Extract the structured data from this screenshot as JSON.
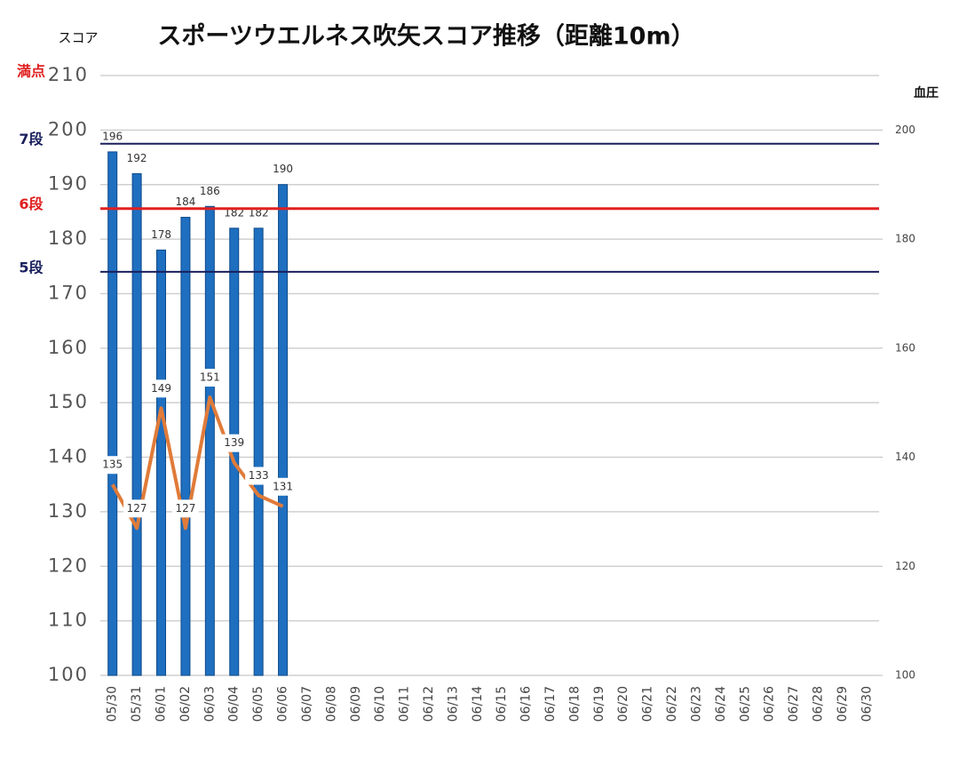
{
  "chart_data": {
    "type": "bar-line",
    "title": "スポーツウエルネス吹矢スコア推移（距離10m）",
    "ylabel": "スコア",
    "y2label": "血圧",
    "categories": [
      "05/30",
      "05/31",
      "06/01",
      "06/02",
      "06/03",
      "06/04",
      "06/05",
      "06/06",
      "06/07",
      "06/08",
      "06/09",
      "06/10",
      "06/11",
      "06/12",
      "06/13",
      "06/14",
      "06/15",
      "06/16",
      "06/17",
      "06/18",
      "06/19",
      "06/20",
      "06/21",
      "06/22",
      "06/23",
      "06/24",
      "06/25",
      "06/26",
      "06/27",
      "06/28",
      "06/29",
      "06/30"
    ],
    "series": [
      {
        "name": "スコア",
        "type": "bar",
        "color": "#1f6fc0",
        "axis": "y",
        "values": [
          196,
          192,
          178,
          184,
          186,
          182,
          182,
          190,
          null,
          null,
          null,
          null,
          null,
          null,
          null,
          null,
          null,
          null,
          null,
          null,
          null,
          null,
          null,
          null,
          null,
          null,
          null,
          null,
          null,
          null,
          null,
          null
        ]
      },
      {
        "name": "血圧",
        "type": "line",
        "color": "#e07b39",
        "axis": "y2",
        "values": [
          135,
          127,
          149,
          127,
          151,
          139,
          133,
          131,
          null,
          null,
          null,
          null,
          null,
          null,
          null,
          null,
          null,
          null,
          null,
          null,
          null,
          null,
          null,
          null,
          null,
          null,
          null,
          null,
          null,
          null,
          null,
          null
        ]
      }
    ],
    "ylim": [
      100,
      210
    ],
    "yticks": [
      100,
      110,
      120,
      130,
      140,
      150,
      160,
      170,
      180,
      190,
      200,
      210
    ],
    "y2lim": [
      100,
      210
    ],
    "y2ticks": [
      100,
      120,
      140,
      160,
      180,
      200
    ],
    "grid": true,
    "reference_lines": [
      {
        "label": "満点",
        "value": 210,
        "color": "#e02020",
        "line": false
      },
      {
        "label": "7段",
        "value": 197.5,
        "color": "#1a1f5c",
        "line": true
      },
      {
        "label": "6段",
        "value": 185.6,
        "color": "#e02020",
        "line": true
      },
      {
        "label": "5段",
        "value": 174,
        "color": "#1a1f5c",
        "line": true
      }
    ]
  }
}
